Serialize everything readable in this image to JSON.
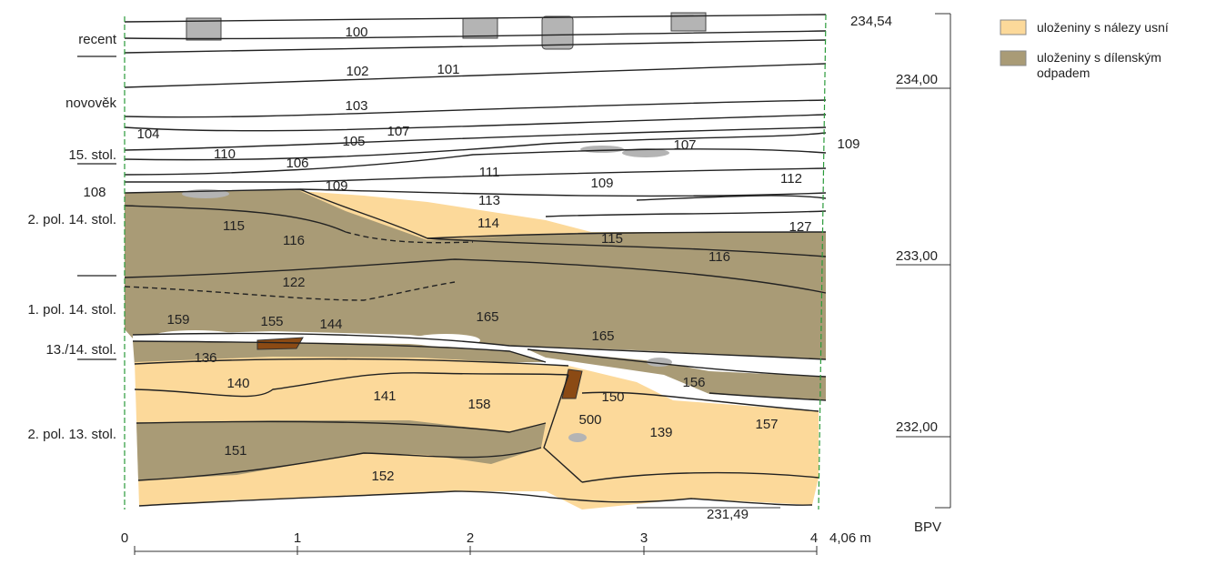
{
  "period_labels": [
    "recent",
    "novověk",
    "15. stol.",
    "2. pol. 14. stol.",
    "1. pol. 14. stol.",
    "13./14. stol.",
    "2. pol. 13. stol."
  ],
  "layer_labels": [
    "100",
    "101",
    "102",
    "103",
    "104",
    "105",
    "107",
    "107",
    "109",
    "106",
    "110",
    "111",
    "108",
    "109",
    "109",
    "112",
    "113",
    "114",
    "127",
    "115",
    "116",
    "115",
    "116",
    "122",
    "159",
    "155",
    "144",
    "165",
    "165",
    "136",
    "140",
    "141",
    "150",
    "156",
    "158",
    "500",
    "139",
    "157",
    "151",
    "152"
  ],
  "elevations": [
    "234,54",
    "234,00",
    "233,00",
    "232,00",
    "231,49"
  ],
  "datum": "BPV",
  "scale": {
    "ticks": [
      "0",
      "1",
      "2",
      "3",
      "4"
    ],
    "end_label": "4,06 m"
  },
  "legend": [
    {
      "label": "uloženiny s nálezy usní"
    },
    {
      "label": "uloženiny s dílenským odpadem"
    }
  ]
}
